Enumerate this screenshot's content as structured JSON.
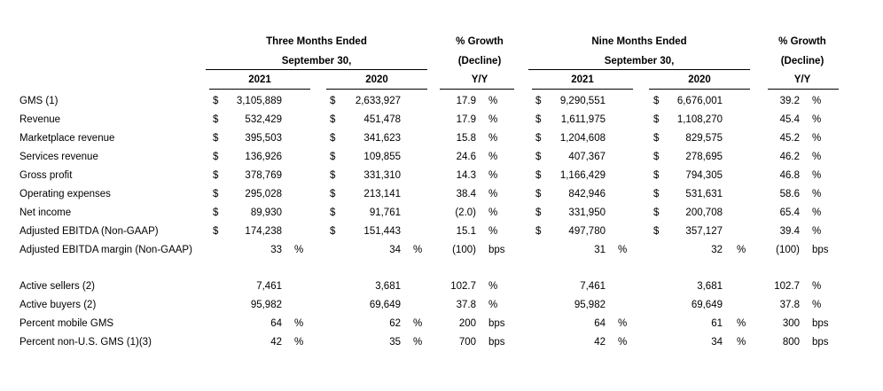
{
  "header": {
    "three_months_line1": "Three Months Ended",
    "three_months_line2": "September 30,",
    "nine_months_line1": "Nine Months Ended",
    "nine_months_line2": "September 30,",
    "growth_line1": "% Growth",
    "growth_line2": "(Decline)",
    "growth_line3": "Y/Y",
    "year_2021": "2021",
    "year_2020": "2020"
  },
  "rows": [
    {
      "label": "GMS (1)",
      "q21": {
        "cur": "$",
        "v": "3,105,889",
        "s": ""
      },
      "q20": {
        "cur": "$",
        "v": "2,633,927",
        "s": ""
      },
      "qg": {
        "v": "17.9",
        "s": "%"
      },
      "n21": {
        "cur": "$",
        "v": "9,290,551",
        "s": ""
      },
      "n20": {
        "cur": "$",
        "v": "6,676,001",
        "s": ""
      },
      "ng": {
        "v": "39.2",
        "s": "%"
      }
    },
    {
      "label": "Revenue",
      "q21": {
        "cur": "$",
        "v": "532,429",
        "s": ""
      },
      "q20": {
        "cur": "$",
        "v": "451,478",
        "s": ""
      },
      "qg": {
        "v": "17.9",
        "s": "%"
      },
      "n21": {
        "cur": "$",
        "v": "1,611,975",
        "s": ""
      },
      "n20": {
        "cur": "$",
        "v": "1,108,270",
        "s": ""
      },
      "ng": {
        "v": "45.4",
        "s": "%"
      }
    },
    {
      "label": "Marketplace revenue",
      "q21": {
        "cur": "$",
        "v": "395,503",
        "s": ""
      },
      "q20": {
        "cur": "$",
        "v": "341,623",
        "s": ""
      },
      "qg": {
        "v": "15.8",
        "s": "%"
      },
      "n21": {
        "cur": "$",
        "v": "1,204,608",
        "s": ""
      },
      "n20": {
        "cur": "$",
        "v": "829,575",
        "s": ""
      },
      "ng": {
        "v": "45.2",
        "s": "%"
      }
    },
    {
      "label": "Services revenue",
      "q21": {
        "cur": "$",
        "v": "136,926",
        "s": ""
      },
      "q20": {
        "cur": "$",
        "v": "109,855",
        "s": ""
      },
      "qg": {
        "v": "24.6",
        "s": "%"
      },
      "n21": {
        "cur": "$",
        "v": "407,367",
        "s": ""
      },
      "n20": {
        "cur": "$",
        "v": "278,695",
        "s": ""
      },
      "ng": {
        "v": "46.2",
        "s": "%"
      }
    },
    {
      "label": "Gross profit",
      "q21": {
        "cur": "$",
        "v": "378,769",
        "s": ""
      },
      "q20": {
        "cur": "$",
        "v": "331,310",
        "s": ""
      },
      "qg": {
        "v": "14.3",
        "s": "%"
      },
      "n21": {
        "cur": "$",
        "v": "1,166,429",
        "s": ""
      },
      "n20": {
        "cur": "$",
        "v": "794,305",
        "s": ""
      },
      "ng": {
        "v": "46.8",
        "s": "%"
      }
    },
    {
      "label": "Operating expenses",
      "q21": {
        "cur": "$",
        "v": "295,028",
        "s": ""
      },
      "q20": {
        "cur": "$",
        "v": "213,141",
        "s": ""
      },
      "qg": {
        "v": "38.4",
        "s": "%"
      },
      "n21": {
        "cur": "$",
        "v": "842,946",
        "s": ""
      },
      "n20": {
        "cur": "$",
        "v": "531,631",
        "s": ""
      },
      "ng": {
        "v": "58.6",
        "s": "%"
      }
    },
    {
      "label": "Net income",
      "q21": {
        "cur": "$",
        "v": "89,930",
        "s": ""
      },
      "q20": {
        "cur": "$",
        "v": "91,761",
        "s": ""
      },
      "qg": {
        "v": "(2.0)",
        "s": "%"
      },
      "n21": {
        "cur": "$",
        "v": "331,950",
        "s": ""
      },
      "n20": {
        "cur": "$",
        "v": "200,708",
        "s": ""
      },
      "ng": {
        "v": "65.4",
        "s": "%"
      }
    },
    {
      "label": "Adjusted EBITDA (Non-GAAP)",
      "q21": {
        "cur": "$",
        "v": "174,238",
        "s": ""
      },
      "q20": {
        "cur": "$",
        "v": "151,443",
        "s": ""
      },
      "qg": {
        "v": "15.1",
        "s": "%"
      },
      "n21": {
        "cur": "$",
        "v": "497,780",
        "s": ""
      },
      "n20": {
        "cur": "$",
        "v": "357,127",
        "s": ""
      },
      "ng": {
        "v": "39.4",
        "s": "%"
      }
    },
    {
      "label": "Adjusted EBITDA margin (Non-GAAP)",
      "q21": {
        "cur": "",
        "v": "33",
        "s": "%"
      },
      "q20": {
        "cur": "",
        "v": "34",
        "s": "%"
      },
      "qg": {
        "v": "(100)",
        "s": "bps"
      },
      "n21": {
        "cur": "",
        "v": "31",
        "s": "%"
      },
      "n20": {
        "cur": "",
        "v": "32",
        "s": "%"
      },
      "ng": {
        "v": "(100)",
        "s": "bps"
      }
    },
    {
      "label": "Active sellers (2)",
      "q21": {
        "cur": "",
        "v": "7,461",
        "s": ""
      },
      "q20": {
        "cur": "",
        "v": "3,681",
        "s": ""
      },
      "qg": {
        "v": "102.7",
        "s": "%"
      },
      "n21": {
        "cur": "",
        "v": "7,461",
        "s": ""
      },
      "n20": {
        "cur": "",
        "v": "3,681",
        "s": ""
      },
      "ng": {
        "v": "102.7",
        "s": "%"
      }
    },
    {
      "label": "Active buyers (2)",
      "q21": {
        "cur": "",
        "v": "95,982",
        "s": ""
      },
      "q20": {
        "cur": "",
        "v": "69,649",
        "s": ""
      },
      "qg": {
        "v": "37.8",
        "s": "%"
      },
      "n21": {
        "cur": "",
        "v": "95,982",
        "s": ""
      },
      "n20": {
        "cur": "",
        "v": "69,649",
        "s": ""
      },
      "ng": {
        "v": "37.8",
        "s": "%"
      }
    },
    {
      "label": "Percent mobile GMS",
      "q21": {
        "cur": "",
        "v": "64",
        "s": "%"
      },
      "q20": {
        "cur": "",
        "v": "62",
        "s": "%"
      },
      "qg": {
        "v": "200",
        "s": "bps"
      },
      "n21": {
        "cur": "",
        "v": "64",
        "s": "%"
      },
      "n20": {
        "cur": "",
        "v": "61",
        "s": "%"
      },
      "ng": {
        "v": "300",
        "s": "bps"
      }
    },
    {
      "label": "Percent non-U.S. GMS (1)(3)",
      "q21": {
        "cur": "",
        "v": "42",
        "s": "%"
      },
      "q20": {
        "cur": "",
        "v": "35",
        "s": "%"
      },
      "qg": {
        "v": "700",
        "s": "bps"
      },
      "n21": {
        "cur": "",
        "v": "42",
        "s": "%"
      },
      "n20": {
        "cur": "",
        "v": "34",
        "s": "%"
      },
      "ng": {
        "v": "800",
        "s": "bps"
      }
    }
  ]
}
